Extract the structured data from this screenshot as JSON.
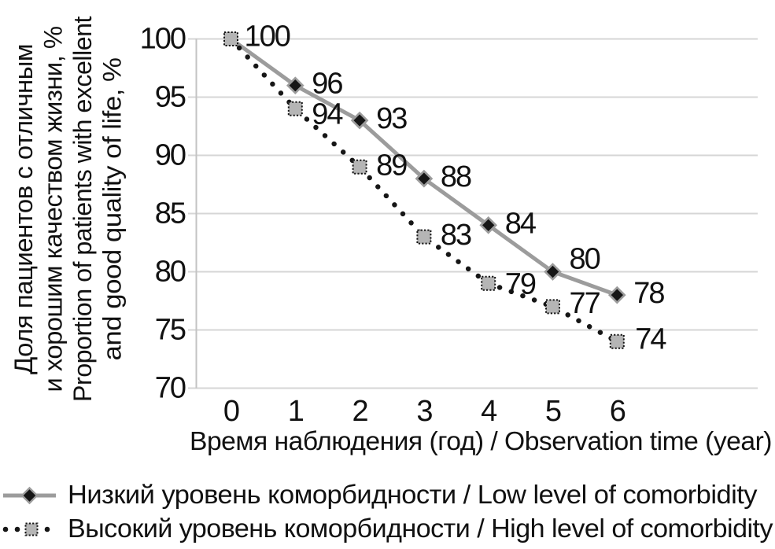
{
  "chart_data": {
    "type": "line",
    "x": [
      0,
      1,
      2,
      3,
      4,
      5,
      6
    ],
    "xticks": [
      "0",
      "1",
      "2",
      "3",
      "4",
      "5",
      "6"
    ],
    "yticks": [
      100,
      95,
      90,
      85,
      80,
      75,
      70
    ],
    "ylim": [
      70,
      100
    ],
    "xlim": [
      0,
      6
    ],
    "grid": "horizontal",
    "data_labels": true,
    "legend_position": "bottom-left",
    "xlabel": "Время наблюдения (год) / Observation time (year)",
    "ylabel_lines": [
      "Доля пациентов с отличным",
      "и хорошим качеством жизни, %",
      "Proportion of patients with excellent",
      "and good quality of life, %"
    ],
    "series": [
      {
        "name": "Низкий уровень коморбидности / Low level of comorbidity",
        "values": [
          100,
          96,
          93,
          88,
          84,
          80,
          78
        ],
        "line_style": "solid",
        "marker": "diamond",
        "line_color": "#9c9c9c",
        "marker_fill": "#161616",
        "marker_stroke": "#9c9c9c"
      },
      {
        "name": "Высокий уровень коморбидности / High level of comorbidity",
        "values": [
          100,
          94,
          89,
          83,
          79,
          77,
          74
        ],
        "line_style": "dotted",
        "marker": "square",
        "line_color": "#161616",
        "marker_fill": "#b5b5b5",
        "marker_stroke": "#161616"
      }
    ]
  },
  "colors": {
    "background": "#ffffff",
    "gridline": "#d6d6d6",
    "axis_line": "#c3c3c3",
    "text": "#111111"
  }
}
